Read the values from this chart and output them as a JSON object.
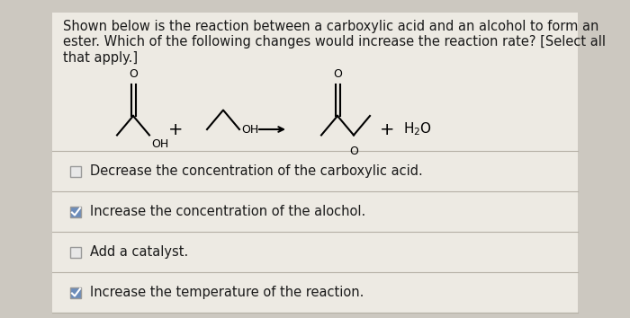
{
  "bg_color": "#ccc8c0",
  "card_color": "#edeae3",
  "title_text": "Shown below is the reaction between a carboxylic acid and an alcohol to form an\nester. Which of the following changes would increase the reaction rate? [Select all\nthat apply.]",
  "title_fontsize": 10.5,
  "options": [
    {
      "text": "Decrease the concentration of the carboxylic acid.",
      "checked": false
    },
    {
      "text": "Increase the concentration of the alochol.",
      "checked": true
    },
    {
      "text": "Add a catalyst.",
      "checked": false
    },
    {
      "text": "Increase the temperature of the reaction.",
      "checked": true
    }
  ],
  "option_fontsize": 10.5,
  "divider_color": "#b5b0a5",
  "check_color": "#6b8cba",
  "text_color": "#1a1a1a"
}
